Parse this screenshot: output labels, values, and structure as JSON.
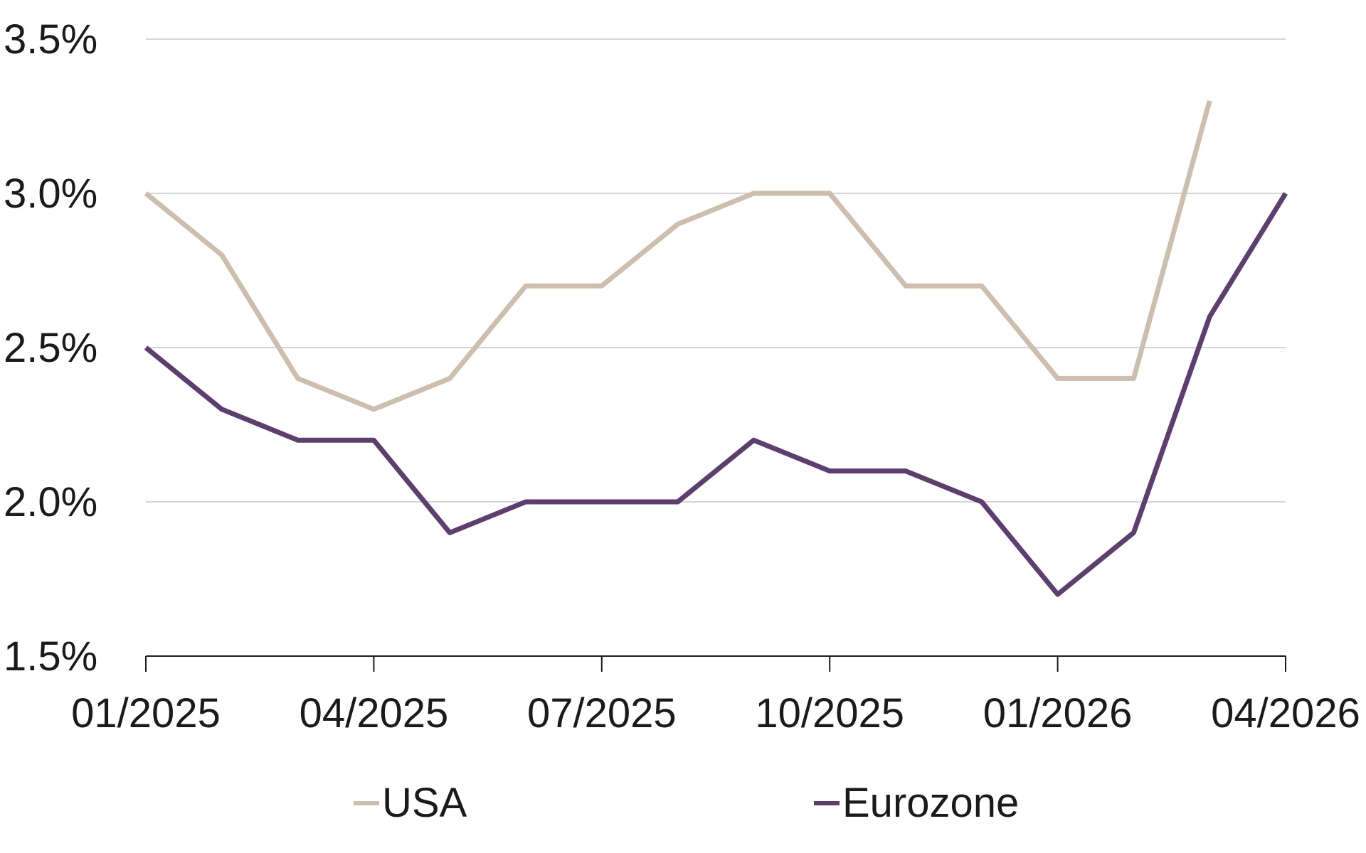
{
  "chart_data": {
    "type": "line",
    "x": [
      "01/2025",
      "02/2025",
      "03/2025",
      "04/2025",
      "05/2025",
      "06/2025",
      "07/2025",
      "08/2025",
      "09/2025",
      "10/2025",
      "11/2025",
      "12/2025",
      "01/2026",
      "02/2026",
      "03/2026",
      "04/2026"
    ],
    "x_tick_labels": [
      "01/2025",
      "04/2025",
      "07/2025",
      "10/2025",
      "01/2026",
      "04/2026"
    ],
    "y_tick_labels": [
      "3.5%",
      "3.0%",
      "2.5%",
      "2.0%",
      "1.5%"
    ],
    "y_ticks": [
      3.5,
      3.0,
      2.5,
      2.0,
      1.5
    ],
    "ylim": [
      1.5,
      3.5
    ],
    "grid": true,
    "legend_position": "bottom",
    "series": [
      {
        "name": "USA",
        "color": "#cdbfae",
        "values": [
          3.0,
          2.8,
          2.4,
          2.3,
          2.4,
          2.7,
          2.7,
          2.9,
          3.0,
          3.0,
          2.7,
          2.7,
          2.4,
          2.4,
          3.3,
          null
        ]
      },
      {
        "name": "Eurozone",
        "color": "#5c3f6f",
        "values": [
          2.5,
          2.3,
          2.2,
          2.2,
          1.9,
          2.0,
          2.0,
          2.0,
          2.2,
          2.1,
          2.1,
          2.0,
          1.7,
          1.9,
          2.6,
          3.0
        ]
      }
    ]
  }
}
